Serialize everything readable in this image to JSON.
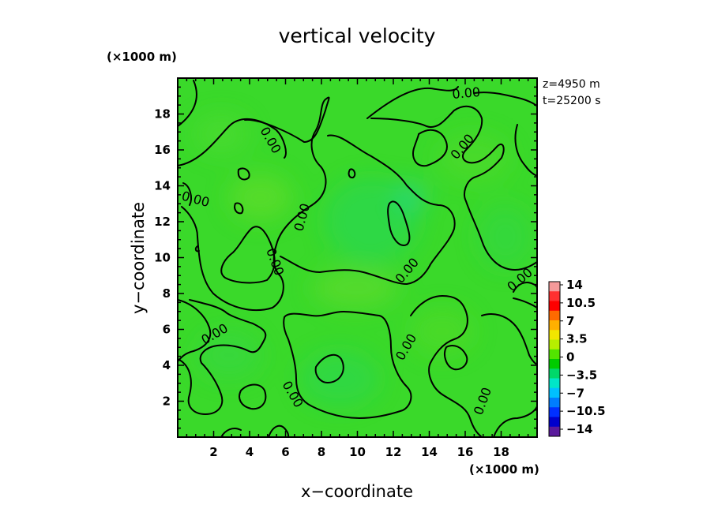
{
  "chart_data": {
    "type": "heatmap",
    "title": "vertical velocity",
    "xlabel": "x−coordinate",
    "ylabel": "y−coordinate",
    "x_unit": "(×1000 m)",
    "y_unit": "(×1000 m)",
    "xlim": [
      0,
      20
    ],
    "ylim": [
      0,
      20
    ],
    "x_ticks": [
      "2",
      "4",
      "6",
      "8",
      "10",
      "12",
      "14",
      "16",
      "18"
    ],
    "y_ticks": [
      "2",
      "4",
      "6",
      "8",
      "10",
      "12",
      "14",
      "16",
      "18"
    ],
    "info": [
      "z=4950  m",
      "t=25200  s"
    ],
    "field_value_approx": 0,
    "contour_level": 0,
    "contour_label": "0.00",
    "colorbar": {
      "labels": [
        "14",
        "10.5",
        "7",
        "3.5",
        "0",
        "−3.5",
        "−7",
        "−10.5",
        "−14"
      ],
      "levels": [
        14,
        10.5,
        7,
        3.5,
        0,
        -3.5,
        -7,
        -10.5,
        -14
      ],
      "colors": [
        "#f59a9a",
        "#ff3030",
        "#ff0000",
        "#ff6a00",
        "#ffb000",
        "#f2e600",
        "#b6ee00",
        "#52e400",
        "#00cc00",
        "#00d86a",
        "#00e6c8",
        "#00c0ff",
        "#007dff",
        "#0030ff",
        "#0000cc",
        "#5a1a9c"
      ]
    },
    "colors": {
      "background_field": "#3ad92a",
      "contour_line": "#000000"
    }
  }
}
